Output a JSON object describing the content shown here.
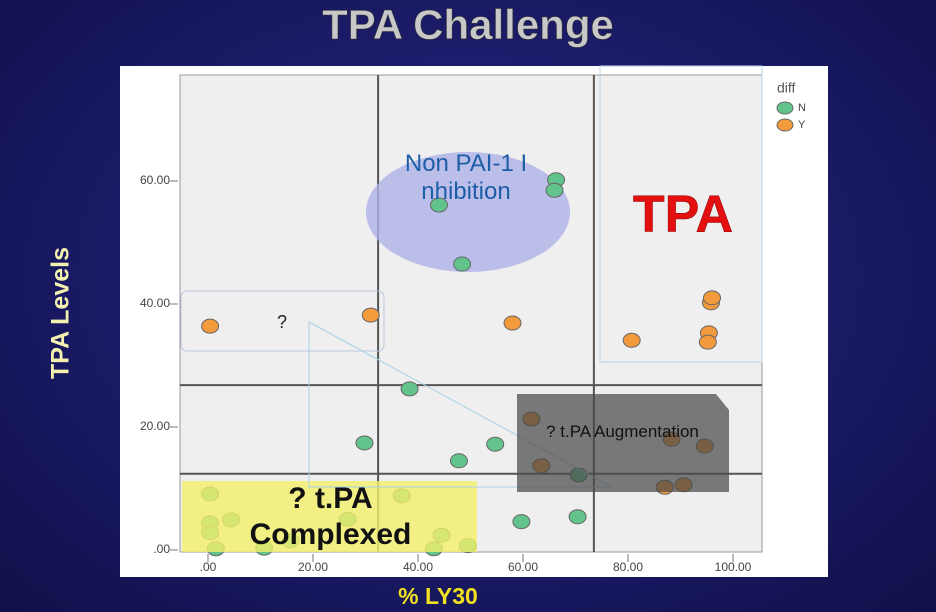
{
  "chart_data": {
    "type": "scatter",
    "title": "TPA Challenge",
    "xlabel": "% LY30",
    "ylabel": "TPA Levels",
    "xlim": [
      -5.33,
      105.52
    ],
    "ylim": [
      -0.33,
      77.24
    ],
    "xticks": [
      {
        "value": 0,
        "label": ".00"
      },
      {
        "value": 20,
        "label": "20.00"
      },
      {
        "value": 40,
        "label": "40.00"
      },
      {
        "value": 60,
        "label": "60.00"
      },
      {
        "value": 80,
        "label": "80.00"
      },
      {
        "value": 100,
        "label": "100.00"
      }
    ],
    "yticks": [
      {
        "value": 0,
        "label": ".00"
      },
      {
        "value": 20,
        "label": "20.00"
      },
      {
        "value": 40,
        "label": "40.00"
      },
      {
        "value": 60,
        "label": "60.00"
      }
    ],
    "xlines": [
      32.4,
      73.5
    ],
    "ylines": [
      26.8,
      12.4
    ],
    "legend_title": "diff",
    "series": [
      {
        "name": "N",
        "color": "#62c48c",
        "x": [
          44,
          66.3,
          66,
          48.4,
          38.4,
          29.8,
          54.7,
          47.8,
          70.6,
          59.7,
          70.4,
          0.4,
          0.4,
          0.4,
          4.4,
          1.5,
          26.6,
          36.9,
          44.5,
          43,
          49.5,
          10.7,
          15.7
        ],
        "values": [
          56.1,
          60.2,
          58.5,
          46.5,
          26.2,
          17.4,
          17.2,
          14.5,
          12.2,
          4.6,
          5.4,
          9.1,
          4.4,
          2.8,
          4.9,
          0.2,
          5,
          8.8,
          2.4,
          0.2,
          0.7,
          0.3,
          1.5
        ]
      },
      {
        "name": "Y",
        "color": "#f39a3c",
        "x": [
          0.4,
          31,
          58,
          80.7,
          95.8,
          96,
          95.4,
          95.2,
          61.6,
          88.3,
          94.6,
          63.5,
          87,
          90.6
        ],
        "values": [
          36.4,
          38.2,
          36.9,
          34.1,
          40.2,
          41,
          35.3,
          33.8,
          21.3,
          18,
          16.9,
          13.7,
          10.2,
          10.6
        ]
      }
    ],
    "annotations": [
      "Non PAI-1 Inhibition",
      "TPA",
      "?",
      "? t.PA Augmentation",
      "? t.PA Complexed"
    ]
  }
}
